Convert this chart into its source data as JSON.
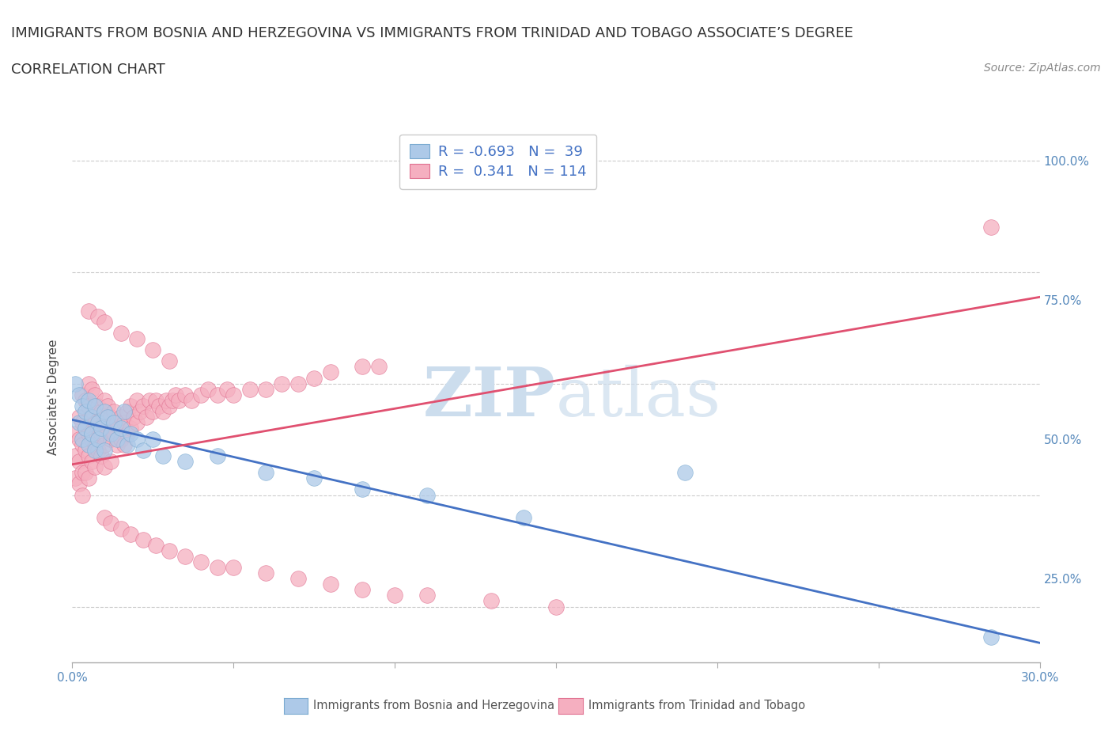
{
  "title_line1": "IMMIGRANTS FROM BOSNIA AND HERZEGOVINA VS IMMIGRANTS FROM TRINIDAD AND TOBAGO ASSOCIATE’S DEGREE",
  "title_line2": "CORRELATION CHART",
  "source_text": "Source: ZipAtlas.com",
  "ylabel": "Associate's Degree",
  "xlim": [
    0.0,
    0.3
  ],
  "ylim": [
    0.1,
    1.05
  ],
  "ytick_positions": [
    0.25,
    0.5,
    0.75,
    1.0
  ],
  "ytick_labels": [
    "25.0%",
    "50.0%",
    "75.0%",
    "100.0%"
  ],
  "xtick_positions": [
    0.0,
    0.05,
    0.1,
    0.15,
    0.2,
    0.25,
    0.3
  ],
  "xtick_labels": [
    "0.0%",
    "",
    "",
    "",
    "",
    "",
    "30.0%"
  ],
  "bosnia_color": "#adc9e8",
  "bosnia_edge_color": "#7aaad0",
  "trinidad_color": "#f5afc0",
  "trinidad_edge_color": "#e07090",
  "bosnia_line_color": "#4472c4",
  "trinidad_line_color": "#e05070",
  "watermark_color": "#ccdded",
  "legend_R_bosnia": "-0.693",
  "legend_N_bosnia": "39",
  "legend_R_trinidad": "0.341",
  "legend_N_trinidad": "114",
  "bosnia_trendline": [
    [
      0.0,
      0.3
    ],
    [
      0.535,
      0.135
    ]
  ],
  "trinidad_trendline": [
    [
      0.0,
      0.3
    ],
    [
      0.455,
      0.755
    ]
  ],
  "bg_color": "#ffffff",
  "grid_color": "#cccccc",
  "title_fontsize": 13,
  "tick_fontsize": 11,
  "axis_label_fontsize": 11,
  "legend_fontsize": 13,
  "text_color": "#4472c4",
  "label_color": "#555555",
  "bosnia_x": [
    0.001,
    0.002,
    0.002,
    0.003,
    0.003,
    0.004,
    0.004,
    0.005,
    0.005,
    0.006,
    0.006,
    0.007,
    0.007,
    0.008,
    0.008,
    0.009,
    0.01,
    0.01,
    0.011,
    0.012,
    0.013,
    0.014,
    0.015,
    0.016,
    0.017,
    0.018,
    0.02,
    0.022,
    0.025,
    0.028,
    0.035,
    0.045,
    0.06,
    0.075,
    0.09,
    0.11,
    0.14,
    0.19,
    0.285
  ],
  "bosnia_y": [
    0.6,
    0.58,
    0.53,
    0.56,
    0.5,
    0.55,
    0.52,
    0.57,
    0.49,
    0.54,
    0.51,
    0.56,
    0.48,
    0.53,
    0.5,
    0.52,
    0.55,
    0.48,
    0.54,
    0.51,
    0.53,
    0.5,
    0.52,
    0.55,
    0.49,
    0.51,
    0.5,
    0.48,
    0.5,
    0.47,
    0.46,
    0.47,
    0.44,
    0.43,
    0.41,
    0.4,
    0.36,
    0.44,
    0.145
  ],
  "trinidad_x": [
    0.001,
    0.001,
    0.001,
    0.002,
    0.002,
    0.002,
    0.002,
    0.003,
    0.003,
    0.003,
    0.003,
    0.003,
    0.004,
    0.004,
    0.004,
    0.004,
    0.005,
    0.005,
    0.005,
    0.005,
    0.005,
    0.006,
    0.006,
    0.006,
    0.006,
    0.007,
    0.007,
    0.007,
    0.007,
    0.008,
    0.008,
    0.008,
    0.009,
    0.009,
    0.009,
    0.01,
    0.01,
    0.01,
    0.01,
    0.011,
    0.011,
    0.012,
    0.012,
    0.012,
    0.013,
    0.013,
    0.014,
    0.014,
    0.015,
    0.015,
    0.016,
    0.016,
    0.017,
    0.017,
    0.018,
    0.018,
    0.019,
    0.02,
    0.02,
    0.021,
    0.022,
    0.023,
    0.024,
    0.025,
    0.026,
    0.027,
    0.028,
    0.029,
    0.03,
    0.031,
    0.032,
    0.033,
    0.035,
    0.037,
    0.04,
    0.042,
    0.045,
    0.048,
    0.05,
    0.055,
    0.06,
    0.065,
    0.07,
    0.075,
    0.08,
    0.09,
    0.095,
    0.01,
    0.012,
    0.015,
    0.018,
    0.022,
    0.026,
    0.03,
    0.035,
    0.04,
    0.045,
    0.05,
    0.06,
    0.07,
    0.08,
    0.09,
    0.1,
    0.11,
    0.13,
    0.15,
    0.005,
    0.008,
    0.01,
    0.015,
    0.02,
    0.025,
    0.03,
    0.285
  ],
  "trinidad_y": [
    0.51,
    0.47,
    0.43,
    0.54,
    0.5,
    0.46,
    0.42,
    0.58,
    0.53,
    0.49,
    0.44,
    0.4,
    0.57,
    0.52,
    0.48,
    0.44,
    0.6,
    0.56,
    0.51,
    0.47,
    0.43,
    0.59,
    0.54,
    0.5,
    0.46,
    0.58,
    0.53,
    0.49,
    0.45,
    0.56,
    0.52,
    0.48,
    0.55,
    0.51,
    0.47,
    0.57,
    0.53,
    0.49,
    0.45,
    0.56,
    0.52,
    0.54,
    0.5,
    0.46,
    0.55,
    0.51,
    0.53,
    0.49,
    0.54,
    0.5,
    0.53,
    0.49,
    0.55,
    0.51,
    0.56,
    0.52,
    0.54,
    0.57,
    0.53,
    0.55,
    0.56,
    0.54,
    0.57,
    0.55,
    0.57,
    0.56,
    0.55,
    0.57,
    0.56,
    0.57,
    0.58,
    0.57,
    0.58,
    0.57,
    0.58,
    0.59,
    0.58,
    0.59,
    0.58,
    0.59,
    0.59,
    0.6,
    0.6,
    0.61,
    0.62,
    0.63,
    0.63,
    0.36,
    0.35,
    0.34,
    0.33,
    0.32,
    0.31,
    0.3,
    0.29,
    0.28,
    0.27,
    0.27,
    0.26,
    0.25,
    0.24,
    0.23,
    0.22,
    0.22,
    0.21,
    0.2,
    0.73,
    0.72,
    0.71,
    0.69,
    0.68,
    0.66,
    0.64,
    0.88
  ]
}
